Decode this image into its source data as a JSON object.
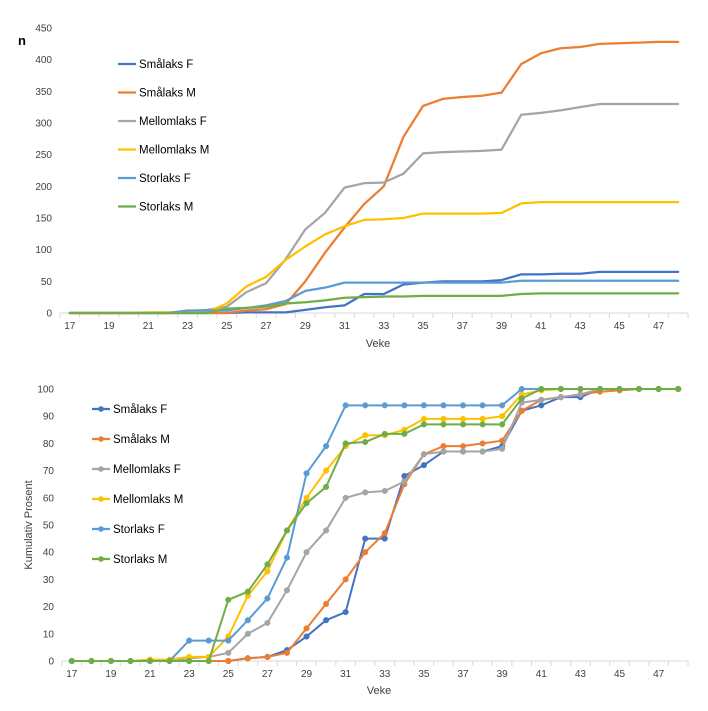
{
  "chart_data": [
    {
      "type": "line",
      "title": "",
      "ylabel": "n",
      "xlabel": "Veke",
      "ylim": [
        0,
        450
      ],
      "yticks": [
        0,
        50,
        100,
        150,
        200,
        250,
        300,
        350,
        400,
        450
      ],
      "xticks": [
        "17",
        "19",
        "21",
        "23",
        "25",
        "27",
        "29",
        "31",
        "33",
        "35",
        "37",
        "39",
        "41",
        "43",
        "45",
        "47"
      ],
      "x": [
        17,
        18,
        19,
        20,
        21,
        22,
        23,
        24,
        25,
        26,
        27,
        28,
        29,
        30,
        31,
        32,
        33,
        34,
        35,
        36,
        37,
        38,
        39,
        40,
        41,
        42,
        43,
        44,
        45,
        46,
        47,
        48
      ],
      "legend_position": "left",
      "markers": false,
      "series": [
        {
          "name": "Smålaks F",
          "color": "#4472c4",
          "values": [
            0,
            0,
            0,
            0,
            0,
            0,
            0,
            0,
            0,
            1,
            1,
            1,
            5,
            9,
            12,
            30,
            30,
            45,
            48,
            50,
            50,
            50,
            52,
            61,
            61,
            62,
            62,
            65,
            65,
            65,
            65,
            65
          ]
        },
        {
          "name": "Smålaks M",
          "color": "#ed7d31",
          "values": [
            0,
            0,
            0,
            0,
            0,
            0,
            0,
            0,
            0,
            4,
            6,
            14,
            50,
            95,
            135,
            172,
            200,
            278,
            327,
            338,
            341,
            343,
            348,
            393,
            410,
            418,
            420,
            425,
            426,
            427,
            428,
            428
          ]
        },
        {
          "name": "Mellomlaks F",
          "color": "#a5a5a5",
          "values": [
            0,
            0,
            0,
            0,
            0,
            0,
            3,
            5,
            10,
            33,
            47,
            85,
            132,
            158,
            198,
            205,
            206,
            220,
            252,
            254,
            255,
            256,
            258,
            313,
            316,
            320,
            325,
            330,
            330,
            330,
            330,
            330
          ]
        },
        {
          "name": "Mellomlaks M",
          "color": "#ffc000",
          "values": [
            0,
            0,
            0,
            0,
            1,
            1,
            1,
            2,
            15,
            42,
            57,
            84,
            105,
            124,
            137,
            147,
            148,
            150,
            157,
            157,
            157,
            157,
            158,
            173,
            175,
            175,
            175,
            175,
            175,
            175,
            175,
            175
          ]
        },
        {
          "name": "Storlaks F",
          "color": "#5b9bd5",
          "values": [
            0,
            0,
            0,
            0,
            0,
            0,
            4,
            4,
            4,
            8,
            12,
            19,
            35,
            40,
            48,
            48,
            48,
            48,
            48,
            48,
            48,
            48,
            48,
            51,
            51,
            51,
            51,
            51,
            51,
            51,
            51,
            51
          ]
        },
        {
          "name": "Storlaks M",
          "color": "#70ad47",
          "values": [
            0,
            0,
            0,
            0,
            0,
            0,
            0,
            0,
            7,
            8,
            10,
            15,
            17,
            20,
            24,
            25,
            26,
            26,
            27,
            27,
            27,
            27,
            27,
            30,
            31,
            31,
            31,
            31,
            31,
            31,
            31,
            31
          ]
        }
      ]
    },
    {
      "type": "line",
      "title": "",
      "ylabel": "Kumulativ Prosent",
      "xlabel": "Veke",
      "ylim": [
        0,
        100
      ],
      "yticks": [
        0,
        10,
        20,
        30,
        40,
        50,
        60,
        70,
        80,
        90,
        100
      ],
      "xticks": [
        "17",
        "19",
        "21",
        "23",
        "25",
        "27",
        "29",
        "31",
        "33",
        "35",
        "37",
        "39",
        "41",
        "43",
        "45",
        "47"
      ],
      "x": [
        17,
        18,
        19,
        20,
        21,
        22,
        23,
        24,
        25,
        26,
        27,
        28,
        29,
        30,
        31,
        32,
        33,
        34,
        35,
        36,
        37,
        38,
        39,
        40,
        41,
        42,
        43,
        44,
        45,
        46,
        47,
        48
      ],
      "legend_position": "left",
      "markers": true,
      "series": [
        {
          "name": "Smålaks F",
          "color": "#4472c4",
          "values": [
            0,
            0,
            0,
            0,
            0,
            0,
            0,
            0,
            0,
            1,
            1.5,
            4,
            9,
            15,
            18,
            45,
            45,
            68,
            72,
            77,
            77,
            77,
            79,
            92,
            94,
            97,
            97,
            100,
            100,
            100,
            100,
            100
          ]
        },
        {
          "name": "Smålaks M",
          "color": "#ed7d31",
          "values": [
            0,
            0,
            0,
            0,
            0,
            0,
            0,
            0,
            0,
            1,
            1.5,
            3,
            12,
            21,
            30,
            40,
            47,
            65,
            76,
            79,
            79,
            80,
            81,
            92,
            96,
            97,
            98,
            99,
            99.5,
            100,
            100,
            100
          ]
        },
        {
          "name": "Mellomlaks F",
          "color": "#a5a5a5",
          "values": [
            0,
            0,
            0,
            0,
            0,
            0,
            1,
            1.5,
            3,
            10,
            14,
            26,
            40,
            48,
            60,
            62,
            62.5,
            66,
            76,
            77,
            77,
            77,
            78,
            95,
            96,
            97,
            98,
            100,
            100,
            100,
            100,
            100
          ]
        },
        {
          "name": "Mellomlaks M",
          "color": "#ffc000",
          "values": [
            0,
            0,
            0,
            0,
            0.5,
            0.5,
            1.5,
            1.5,
            9,
            24,
            33,
            48,
            60,
            70,
            79,
            83,
            83,
            85,
            89,
            89,
            89,
            89,
            90,
            98,
            99.5,
            100,
            100,
            100,
            100,
            100,
            100,
            100
          ]
        },
        {
          "name": "Storlaks F",
          "color": "#5b9bd5",
          "values": [
            0,
            0,
            0,
            0,
            0,
            0,
            7.5,
            7.5,
            7.5,
            15,
            23,
            38,
            69,
            79,
            94,
            94,
            94,
            94,
            94,
            94,
            94,
            94,
            94,
            100,
            100,
            100,
            100,
            100,
            100,
            100,
            100,
            100
          ]
        },
        {
          "name": "Storlaks M",
          "color": "#70ad47",
          "values": [
            0,
            0,
            0,
            0,
            0,
            0,
            0,
            0,
            22.5,
            25.5,
            35.5,
            48,
            58,
            64,
            80,
            80.5,
            83.5,
            83.5,
            87,
            87,
            87,
            87,
            87,
            96.5,
            100,
            100,
            100,
            100,
            100,
            100,
            100,
            100
          ]
        }
      ]
    }
  ]
}
